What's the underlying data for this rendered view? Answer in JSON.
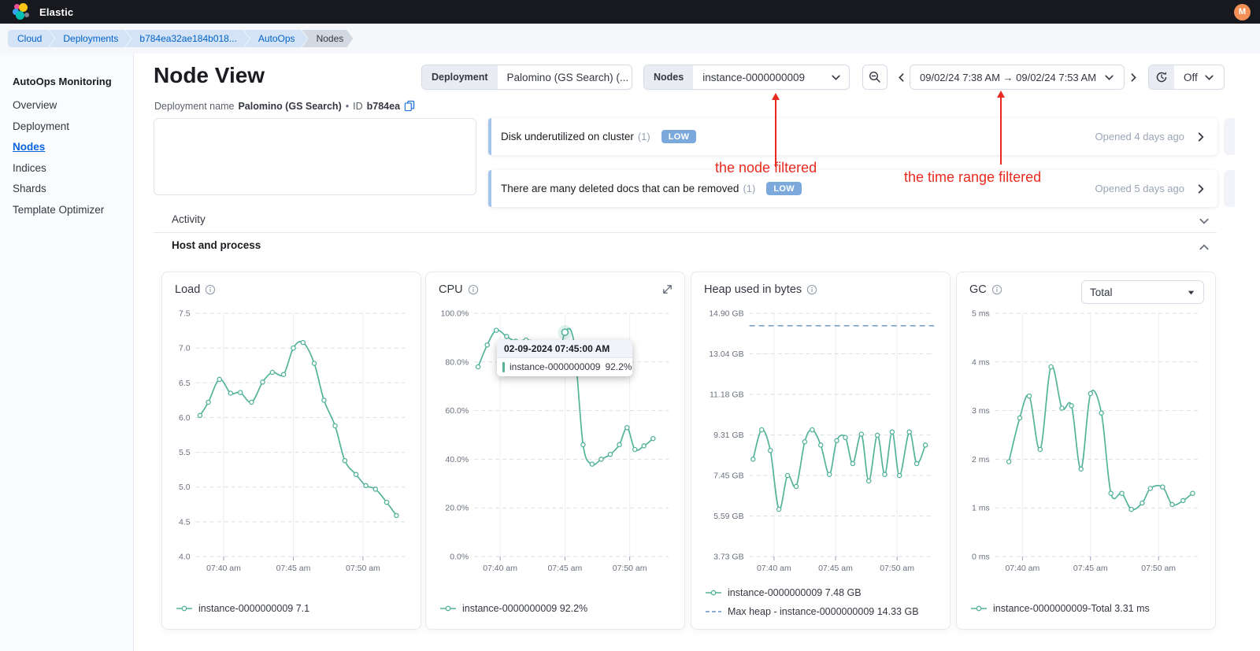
{
  "topbar": {
    "brand": "Elastic",
    "avatar": "M"
  },
  "breadcrumbs": [
    {
      "label": "Cloud"
    },
    {
      "label": "Deployments"
    },
    {
      "label": "b784ea32ae184b018..."
    },
    {
      "label": "AutoOps"
    },
    {
      "label": "Nodes"
    }
  ],
  "sidebar": {
    "title": "AutoOps Monitoring",
    "items": [
      {
        "label": "Overview"
      },
      {
        "label": "Deployment"
      },
      {
        "label": "Nodes"
      },
      {
        "label": "Indices"
      },
      {
        "label": "Shards"
      },
      {
        "label": "Template Optimizer"
      }
    ]
  },
  "header": {
    "title": "Node View",
    "deployment_label": "Deployment name",
    "deployment_name": "Palomino (GS Search)",
    "separator": "•",
    "id_label": "ID",
    "id_value": "b784ea"
  },
  "filters": {
    "deployment": {
      "label": "Deployment",
      "value": "Palomino (GS Search) (..."
    },
    "nodes": {
      "label": "Nodes",
      "value": "instance-0000000009"
    },
    "time_range": "09/02/24 7:38 AM → 09/02/24 7:53 AM",
    "refresh_value": "Off"
  },
  "alerts": [
    {
      "title": "Disk underutilized on cluster",
      "count": "(1)",
      "severity": "LOW",
      "opened": "Opened 4 days ago"
    },
    {
      "title": "There are many deleted docs that can be removed",
      "count": "(1)",
      "severity": "LOW",
      "opened": "Opened 5 days ago"
    }
  ],
  "sections": {
    "activity": "Activity",
    "host": "Host and process"
  },
  "annotations": {
    "node": "the node filtered",
    "time": "the time range filtered",
    "color": "#ea2a1f"
  },
  "colors": {
    "series_teal": "#54b399",
    "max_heap_blue": "#6092c0",
    "badge_blue": "#7ca9dc"
  },
  "chart_data": [
    {
      "key": "load",
      "type": "line",
      "title": "Load",
      "ylim": [
        4.0,
        7.5
      ],
      "yticks": [
        {
          "v": 7.5,
          "label": "7.5"
        },
        {
          "v": 7.0,
          "label": "7.0"
        },
        {
          "v": 6.5,
          "label": "6.5"
        },
        {
          "v": 6.0,
          "label": "6.0"
        },
        {
          "v": 5.5,
          "label": "5.5"
        },
        {
          "v": 5.0,
          "label": "5.0"
        },
        {
          "v": 4.5,
          "label": "4.5"
        },
        {
          "v": 4.0,
          "label": "4.0"
        }
      ],
      "xlim": [
        38,
        53
      ],
      "xticks": [
        {
          "v": 40,
          "label": "07:40 am"
        },
        {
          "v": 45,
          "label": "07:45 am"
        },
        {
          "v": 50,
          "label": "07:50 am"
        }
      ],
      "series": [
        {
          "name": "instance-0000000009",
          "color": "#54b399",
          "points": [
            [
              38.3,
              6.03
            ],
            [
              38.9,
              6.22
            ],
            [
              39.7,
              6.55
            ],
            [
              40.5,
              6.35
            ],
            [
              41.2,
              6.36
            ],
            [
              42.0,
              6.22
            ],
            [
              42.8,
              6.51
            ],
            [
              43.5,
              6.65
            ],
            [
              44.3,
              6.62
            ],
            [
              45.0,
              7.0
            ],
            [
              45.7,
              7.08
            ],
            [
              46.5,
              6.78
            ],
            [
              47.2,
              6.25
            ],
            [
              48.0,
              5.88
            ],
            [
              48.7,
              5.38
            ],
            [
              49.5,
              5.18
            ],
            [
              50.2,
              5.02
            ],
            [
              50.9,
              4.97
            ],
            [
              51.7,
              4.78
            ],
            [
              52.4,
              4.59
            ]
          ]
        }
      ],
      "legend": [
        {
          "swatch": "line",
          "color": "#54b399",
          "label": "instance-0000000009 7.1"
        }
      ]
    },
    {
      "key": "cpu",
      "type": "line",
      "title": "CPU",
      "ylim": [
        0,
        100
      ],
      "yticks": [
        {
          "v": 100,
          "label": "100.0%"
        },
        {
          "v": 80,
          "label": "80.0%"
        },
        {
          "v": 60,
          "label": "60.0%"
        },
        {
          "v": 40,
          "label": "40.0%"
        },
        {
          "v": 20,
          "label": "20.0%"
        },
        {
          "v": 0,
          "label": "0.0%"
        }
      ],
      "xlim": [
        38,
        53
      ],
      "xticks": [
        {
          "v": 40,
          "label": "07:40 am"
        },
        {
          "v": 45,
          "label": "07:45 am"
        },
        {
          "v": 50,
          "label": "07:50 am"
        }
      ],
      "series": [
        {
          "name": "instance-0000000009",
          "color": "#54b399",
          "points": [
            [
              38.3,
              78
            ],
            [
              39.0,
              87
            ],
            [
              39.7,
              93
            ],
            [
              40.5,
              90.5
            ],
            [
              41.2,
              88.5
            ],
            [
              42.0,
              89
            ],
            [
              42.8,
              88
            ],
            [
              43.5,
              84
            ],
            [
              44.3,
              77
            ],
            [
              45.0,
              92.2
            ],
            [
              45.7,
              88
            ],
            [
              46.4,
              46
            ],
            [
              47.1,
              38
            ],
            [
              47.8,
              40
            ],
            [
              48.5,
              42
            ],
            [
              49.2,
              46
            ],
            [
              49.8,
              53
            ],
            [
              50.4,
              44
            ],
            [
              51.1,
              45.5
            ],
            [
              51.8,
              48.5
            ]
          ]
        }
      ],
      "highlight": [
        45.0,
        92.2
      ],
      "tooltip": {
        "header": "02-09-2024 07:45:00 AM",
        "row_label": "instance-0000000009",
        "row_value": "92.2%"
      },
      "legend": [
        {
          "swatch": "line",
          "color": "#54b399",
          "label": "instance-0000000009 92.2%"
        }
      ]
    },
    {
      "key": "heap",
      "type": "line",
      "title": "Heap used in bytes",
      "ylim": [
        3.73,
        14.9
      ],
      "yticks": [
        {
          "v": 14.9,
          "label": "14.90 GB"
        },
        {
          "v": 13.04,
          "label": "13.04 GB"
        },
        {
          "v": 11.18,
          "label": "11.18 GB"
        },
        {
          "v": 9.31,
          "label": "9.31 GB"
        },
        {
          "v": 7.45,
          "label": "7.45 GB"
        },
        {
          "v": 5.59,
          "label": "5.59 GB"
        },
        {
          "v": 3.73,
          "label": "3.73 GB"
        }
      ],
      "xlim": [
        38,
        53
      ],
      "xticks": [
        {
          "v": 40,
          "label": "07:40 am"
        },
        {
          "v": 45,
          "label": "07:45 am"
        },
        {
          "v": 50,
          "label": "07:50 am"
        }
      ],
      "ref_line": {
        "v": 14.33,
        "color": "#6092c0"
      },
      "series": [
        {
          "name": "instance-0000000009",
          "color": "#54b399",
          "points": [
            [
              38.3,
              8.2
            ],
            [
              39.0,
              9.55
            ],
            [
              39.7,
              8.6
            ],
            [
              40.4,
              5.9
            ],
            [
              41.1,
              7.45
            ],
            [
              41.8,
              6.95
            ],
            [
              42.5,
              9.0
            ],
            [
              43.1,
              9.55
            ],
            [
              43.8,
              8.85
            ],
            [
              44.5,
              7.5
            ],
            [
              45.1,
              9.05
            ],
            [
              45.8,
              9.2
            ],
            [
              46.4,
              8.0
            ],
            [
              47.1,
              9.35
            ],
            [
              47.7,
              7.2
            ],
            [
              48.4,
              9.3
            ],
            [
              49.0,
              7.5
            ],
            [
              49.6,
              9.45
            ],
            [
              50.2,
              7.45
            ],
            [
              51.0,
              9.45
            ],
            [
              51.6,
              8.0
            ],
            [
              52.3,
              8.85
            ]
          ]
        }
      ],
      "legend": [
        {
          "swatch": "line",
          "color": "#54b399",
          "label": "instance-0000000009 7.48 GB"
        },
        {
          "swatch": "dash",
          "color": "#6092c0",
          "label": "Max heap - instance-0000000009 14.33 GB"
        }
      ]
    },
    {
      "key": "gc",
      "type": "line",
      "title": "GC",
      "select_value": "Total",
      "ylim": [
        0,
        5
      ],
      "yticks": [
        {
          "v": 5,
          "label": "5 ms"
        },
        {
          "v": 4,
          "label": "4 ms"
        },
        {
          "v": 3,
          "label": "3 ms"
        },
        {
          "v": 2,
          "label": "2 ms"
        },
        {
          "v": 1,
          "label": "1 ms"
        },
        {
          "v": 0,
          "label": "0 ms"
        }
      ],
      "xlim": [
        38,
        53
      ],
      "xticks": [
        {
          "v": 40,
          "label": "07:40 am"
        },
        {
          "v": 45,
          "label": "07:45 am"
        },
        {
          "v": 50,
          "label": "07:50 am"
        }
      ],
      "series": [
        {
          "name": "instance-0000000009-Total",
          "color": "#54b399",
          "points": [
            [
              39.0,
              1.95
            ],
            [
              39.8,
              2.85
            ],
            [
              40.5,
              3.3
            ],
            [
              41.3,
              2.2
            ],
            [
              42.1,
              3.9
            ],
            [
              42.9,
              3.05
            ],
            [
              43.6,
              3.1
            ],
            [
              44.3,
              1.8
            ],
            [
              45.0,
              3.35
            ],
            [
              45.8,
              2.95
            ],
            [
              46.5,
              1.3
            ],
            [
              47.3,
              1.3
            ],
            [
              48.0,
              0.97
            ],
            [
              48.8,
              1.1
            ],
            [
              49.4,
              1.4
            ],
            [
              50.3,
              1.43
            ],
            [
              51.0,
              1.07
            ],
            [
              51.8,
              1.15
            ],
            [
              52.5,
              1.3
            ]
          ]
        }
      ],
      "legend": [
        {
          "swatch": "line",
          "color": "#54b399",
          "label": "instance-0000000009-Total 3.31 ms"
        }
      ]
    }
  ]
}
